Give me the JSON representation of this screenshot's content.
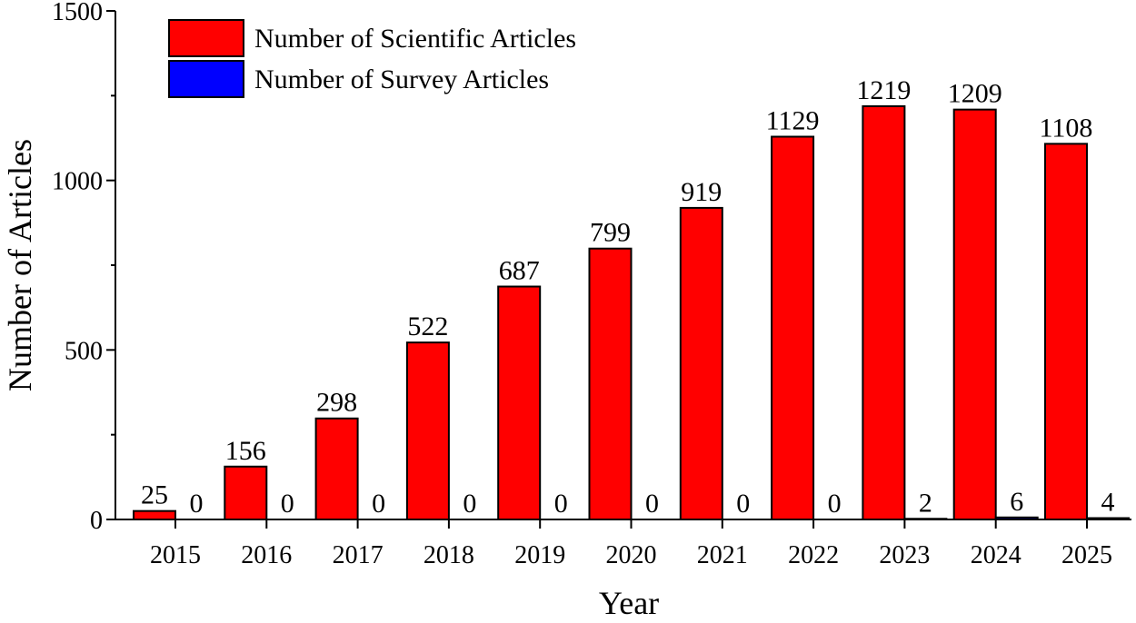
{
  "chart_data": {
    "type": "bar",
    "categories": [
      "2015",
      "2016",
      "2017",
      "2018",
      "2019",
      "2020",
      "2021",
      "2022",
      "2023",
      "2024",
      "2025"
    ],
    "series": [
      {
        "name": "Number of Scientific Articles",
        "color": "#ff0000",
        "values": [
          25,
          156,
          298,
          522,
          687,
          799,
          919,
          1129,
          1219,
          1209,
          1108
        ]
      },
      {
        "name": "Number of Survey Articles",
        "color": "#0000ff",
        "values": [
          0,
          0,
          0,
          0,
          0,
          0,
          0,
          0,
          2,
          6,
          4
        ]
      }
    ],
    "data_labels": [
      [
        "25",
        "156",
        "298",
        "522",
        "687",
        "799",
        "919",
        "1129",
        "1219",
        "1209",
        "1108"
      ],
      [
        "0",
        "0",
        "0",
        "0",
        "0",
        "0",
        "0",
        "0",
        "2",
        "6",
        "4"
      ]
    ],
    "title": "",
    "xlabel": "Year",
    "ylabel": "Number of Articles",
    "ylim": [
      0,
      1500
    ],
    "yticks": [
      0,
      500,
      1000,
      1500
    ],
    "ytick_labels": [
      "0",
      "500",
      "1000",
      "1500"
    ],
    "grid": false,
    "legend_position": "top-left"
  }
}
